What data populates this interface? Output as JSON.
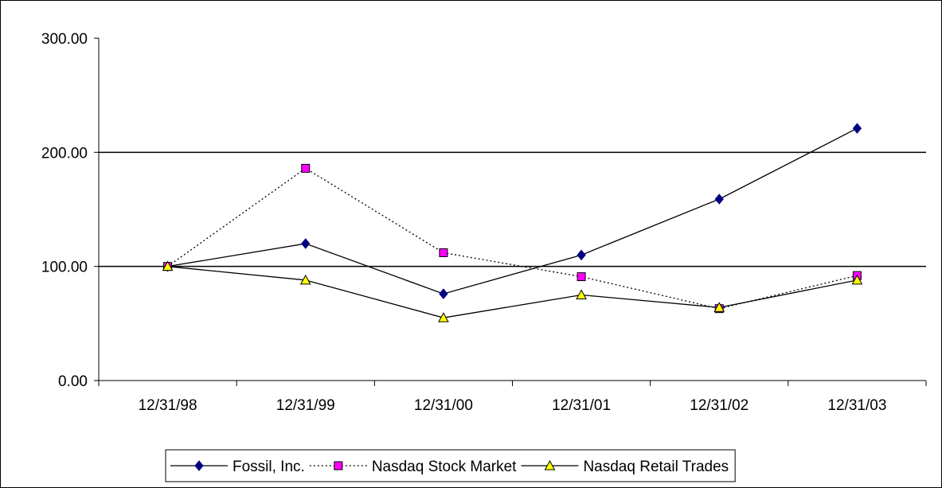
{
  "chart_data": {
    "type": "line",
    "title": "",
    "xlabel": "",
    "ylabel": "",
    "categories": [
      "12/31/98",
      "12/31/99",
      "12/31/00",
      "12/31/01",
      "12/31/02",
      "12/31/03"
    ],
    "yticks": [
      "0.00",
      "100.00",
      "200.00",
      "300.00"
    ],
    "ylim": [
      0,
      300
    ],
    "grid": "major horizontal lines at 100 and 200",
    "legend_position": "bottom",
    "series": [
      {
        "name": "Fossil, Inc.",
        "values": [
          100,
          120,
          76,
          110,
          159,
          221
        ],
        "color": "#000000",
        "marker": "diamond",
        "marker_color": "#000080",
        "line_style": "solid"
      },
      {
        "name": "Nasdaq Stock Market",
        "values": [
          100,
          186,
          112,
          91,
          63,
          92
        ],
        "color": "#000000",
        "marker": "square",
        "marker_color": "#ff00ff",
        "line_style": "dotted"
      },
      {
        "name": "Nasdaq Retail Trades",
        "values": [
          100,
          88,
          55,
          75,
          64,
          88
        ],
        "color": "#000000",
        "marker": "triangle",
        "marker_color": "#ffff00",
        "line_style": "solid"
      }
    ]
  }
}
